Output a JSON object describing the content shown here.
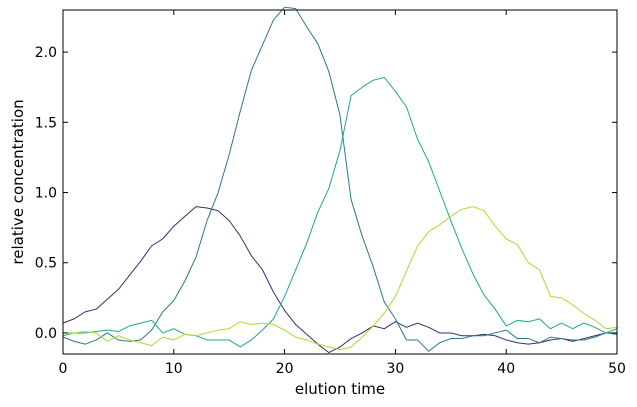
{
  "chart_data": {
    "type": "line",
    "xlabel": "elution time",
    "ylabel": "relative concentration",
    "xlim": [
      0,
      50
    ],
    "ylim": [
      -0.15,
      2.3
    ],
    "xticks": [
      0,
      10,
      20,
      30,
      40,
      50
    ],
    "xtick_labels": [
      "0",
      "10",
      "20",
      "30",
      "40",
      "50"
    ],
    "yticks": [
      0.0,
      0.5,
      1.0,
      1.5,
      2.0
    ],
    "ytick_labels": [
      "0.0",
      "0.5",
      "1.0",
      "1.5",
      "2.0"
    ],
    "grid": false,
    "series": [
      {
        "color": "#3b2a6e",
        "x": [
          0,
          1,
          2,
          3,
          4,
          5,
          6,
          7,
          8,
          9,
          10,
          11,
          12,
          13,
          14,
          15,
          16,
          17,
          18,
          19,
          20,
          21,
          22,
          23,
          24,
          25,
          26,
          27,
          28,
          29,
          30,
          31,
          32,
          33,
          34,
          35,
          36,
          37,
          38,
          39,
          40,
          41,
          42,
          43,
          44,
          45,
          46,
          47,
          48,
          49,
          50
        ],
        "values": [
          0.07,
          0.1,
          0.15,
          0.17,
          0.24,
          0.31,
          0.41,
          0.51,
          0.62,
          0.67,
          0.76,
          0.83,
          0.9,
          0.89,
          0.87,
          0.8,
          0.69,
          0.55,
          0.45,
          0.29,
          0.16,
          0.06,
          -0.01,
          -0.08,
          -0.14,
          -0.1,
          -0.04,
          0.0,
          0.05,
          0.03,
          0.08,
          0.04,
          0.07,
          0.04,
          0.0,
          0.0,
          -0.02,
          -0.02,
          -0.01,
          -0.02,
          -0.05,
          -0.07,
          -0.08,
          -0.07,
          -0.05,
          -0.04,
          -0.06,
          -0.04,
          -0.02,
          0.0,
          0.0
        ]
      },
      {
        "color": "#2a788e",
        "x": [
          0,
          1,
          2,
          3,
          4,
          5,
          6,
          7,
          8,
          9,
          10,
          11,
          12,
          13,
          14,
          15,
          16,
          17,
          18,
          19,
          20,
          21,
          22,
          23,
          24,
          25,
          26,
          27,
          28,
          29,
          30,
          31,
          32,
          33,
          34,
          35,
          36,
          37,
          38,
          39,
          40,
          41,
          42,
          43,
          44,
          45,
          46,
          47,
          48,
          49,
          50
        ],
        "values": [
          -0.03,
          -0.06,
          -0.08,
          -0.05,
          0.0,
          -0.05,
          -0.06,
          -0.05,
          0.02,
          0.15,
          0.23,
          0.37,
          0.54,
          0.8,
          1.0,
          1.27,
          1.58,
          1.87,
          2.05,
          2.23,
          2.32,
          2.31,
          2.18,
          2.06,
          1.86,
          1.55,
          0.95,
          0.69,
          0.47,
          0.22,
          0.1,
          -0.05,
          -0.05,
          -0.13,
          -0.07,
          -0.04,
          -0.04,
          -0.02,
          -0.02,
          0.0,
          0.02,
          -0.04,
          -0.04,
          -0.07,
          -0.03,
          -0.04,
          -0.05,
          -0.05,
          -0.03,
          0.0,
          -0.01
        ]
      },
      {
        "color": "#22a884",
        "x": [
          0,
          1,
          2,
          3,
          4,
          5,
          6,
          7,
          8,
          9,
          10,
          11,
          12,
          13,
          14,
          15,
          16,
          17,
          18,
          19,
          20,
          21,
          22,
          23,
          24,
          25,
          26,
          27,
          28,
          29,
          30,
          31,
          32,
          33,
          34,
          35,
          36,
          37,
          38,
          39,
          40,
          41,
          42,
          43,
          44,
          45,
          46,
          47,
          48,
          49,
          50
        ],
        "values": [
          -0.02,
          0.0,
          0.0,
          0.01,
          0.02,
          0.01,
          0.05,
          0.07,
          0.09,
          0.0,
          0.03,
          -0.01,
          -0.02,
          -0.05,
          -0.05,
          -0.05,
          -0.1,
          -0.05,
          0.02,
          0.1,
          0.26,
          0.45,
          0.64,
          0.86,
          1.03,
          1.3,
          1.69,
          1.75,
          1.8,
          1.82,
          1.72,
          1.61,
          1.38,
          1.22,
          1.01,
          0.8,
          0.6,
          0.42,
          0.27,
          0.17,
          0.05,
          0.09,
          0.08,
          0.1,
          0.03,
          0.07,
          0.03,
          0.07,
          0.04,
          0.0,
          0.03
        ]
      },
      {
        "color": "#a8db34",
        "x": [
          0,
          1,
          2,
          3,
          4,
          5,
          6,
          7,
          8,
          9,
          10,
          11,
          12,
          13,
          14,
          15,
          16,
          17,
          18,
          19,
          20,
          21,
          22,
          23,
          24,
          25,
          26,
          27,
          28,
          29,
          30,
          31,
          32,
          33,
          34,
          35,
          36,
          37,
          38,
          39,
          40,
          41,
          42,
          43,
          44,
          45,
          46,
          47,
          48,
          49,
          50
        ],
        "values": [
          0.0,
          0.0,
          0.01,
          0.0,
          -0.06,
          -0.02,
          -0.05,
          -0.07,
          -0.09,
          -0.03,
          -0.05,
          -0.01,
          -0.02,
          0.0,
          0.02,
          0.03,
          0.08,
          0.06,
          0.07,
          0.06,
          0.02,
          -0.03,
          -0.05,
          -0.08,
          -0.1,
          -0.12,
          -0.1,
          -0.03,
          0.05,
          0.14,
          0.26,
          0.44,
          0.62,
          0.72,
          0.77,
          0.83,
          0.88,
          0.9,
          0.87,
          0.76,
          0.67,
          0.63,
          0.5,
          0.45,
          0.26,
          0.25,
          0.2,
          0.14,
          0.09,
          0.03,
          0.04
        ]
      }
    ]
  }
}
